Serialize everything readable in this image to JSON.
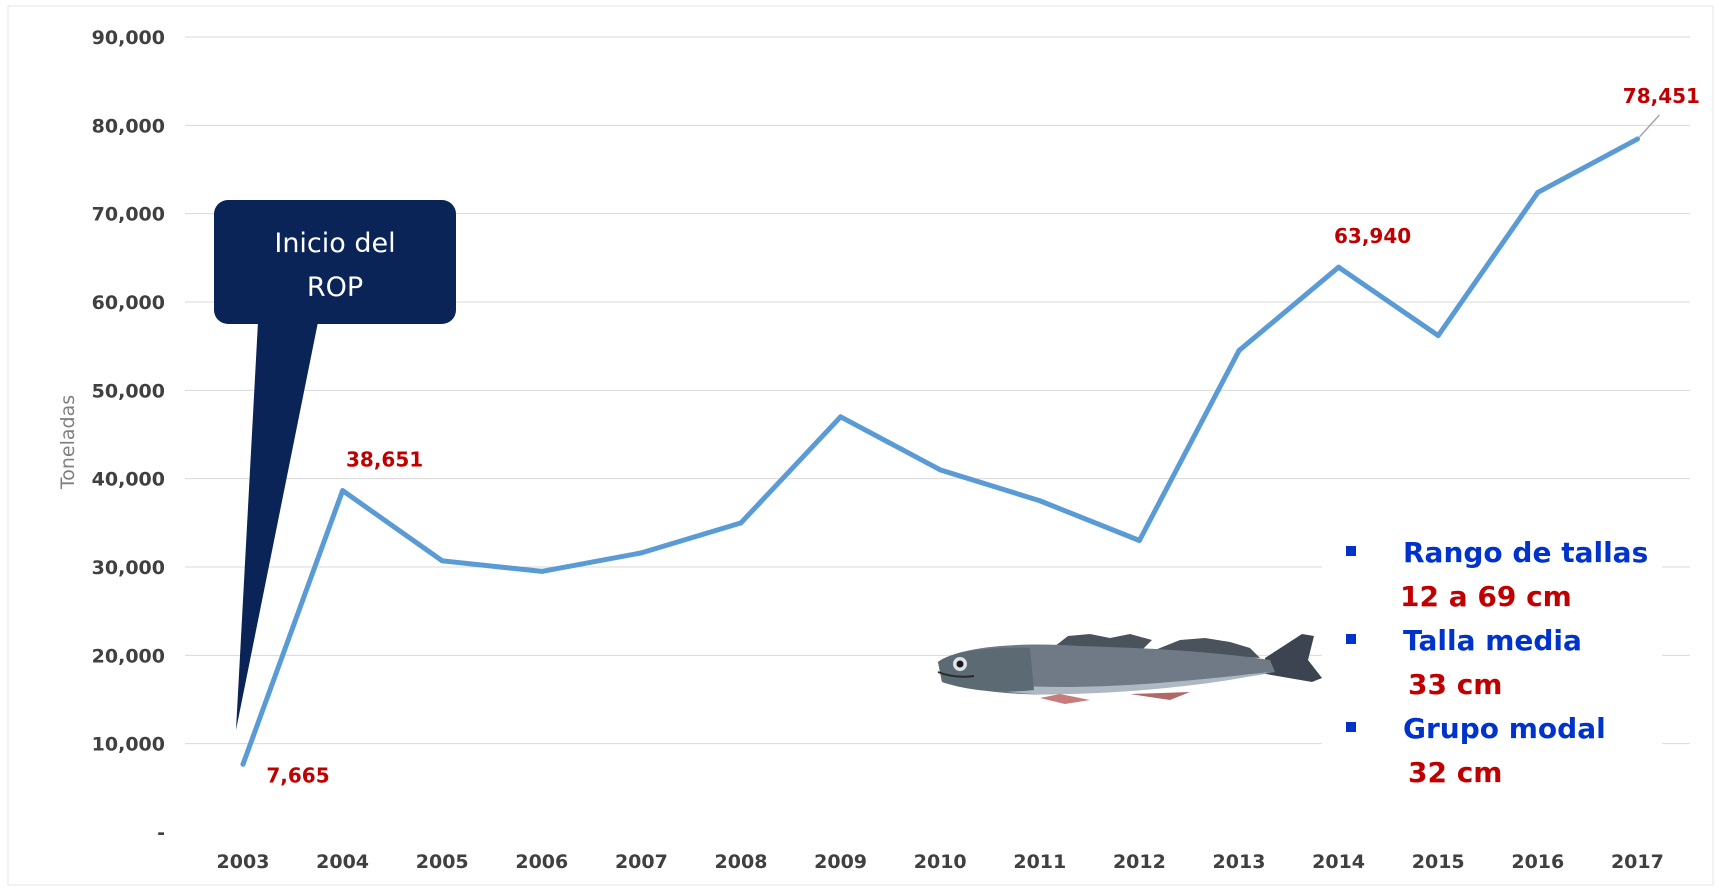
{
  "chart_data": {
    "type": "line",
    "title": "",
    "xlabel": "",
    "ylabel": "Toneladas",
    "categories": [
      "2003",
      "2004",
      "2005",
      "2006",
      "2007",
      "2008",
      "2009",
      "2010",
      "2011",
      "2012",
      "2013",
      "2014",
      "2015",
      "2016",
      "2017"
    ],
    "series": [
      {
        "values": [
          7665,
          38651,
          30700,
          29500,
          31600,
          35000,
          47000,
          41000,
          37500,
          33000,
          54500,
          63940,
          56200,
          72400,
          78451
        ]
      }
    ],
    "ylim": [
      0,
      90000
    ],
    "yticks": [
      0,
      10000,
      20000,
      30000,
      40000,
      50000,
      60000,
      70000,
      80000,
      90000
    ],
    "ytick_labels": [
      "-",
      "10,000",
      "20,000",
      "30,000",
      "40,000",
      "50,000",
      "60,000",
      "70,000",
      "80,000",
      "90,000"
    ],
    "grid": true,
    "line_color": "#5b9bd5",
    "data_labels": [
      {
        "index": 0,
        "text": "7,665"
      },
      {
        "index": 1,
        "text": "38,651"
      },
      {
        "index": 11,
        "text": "63,940"
      },
      {
        "index": 14,
        "text": "78,451"
      }
    ]
  },
  "callout": {
    "line1": "Inicio del",
    "line2": "ROP",
    "fill": "#0a2457"
  },
  "info_box": {
    "items": [
      {
        "label": "Rango de tallas",
        "value": "12 a 69 cm"
      },
      {
        "label": "Talla media",
        "value": "33 cm"
      },
      {
        "label": "Grupo modal",
        "value": "32 cm"
      }
    ],
    "label_color": "#0033cc",
    "value_color": "#c00000"
  },
  "image": {
    "icon": "hake-fish-illustration"
  }
}
